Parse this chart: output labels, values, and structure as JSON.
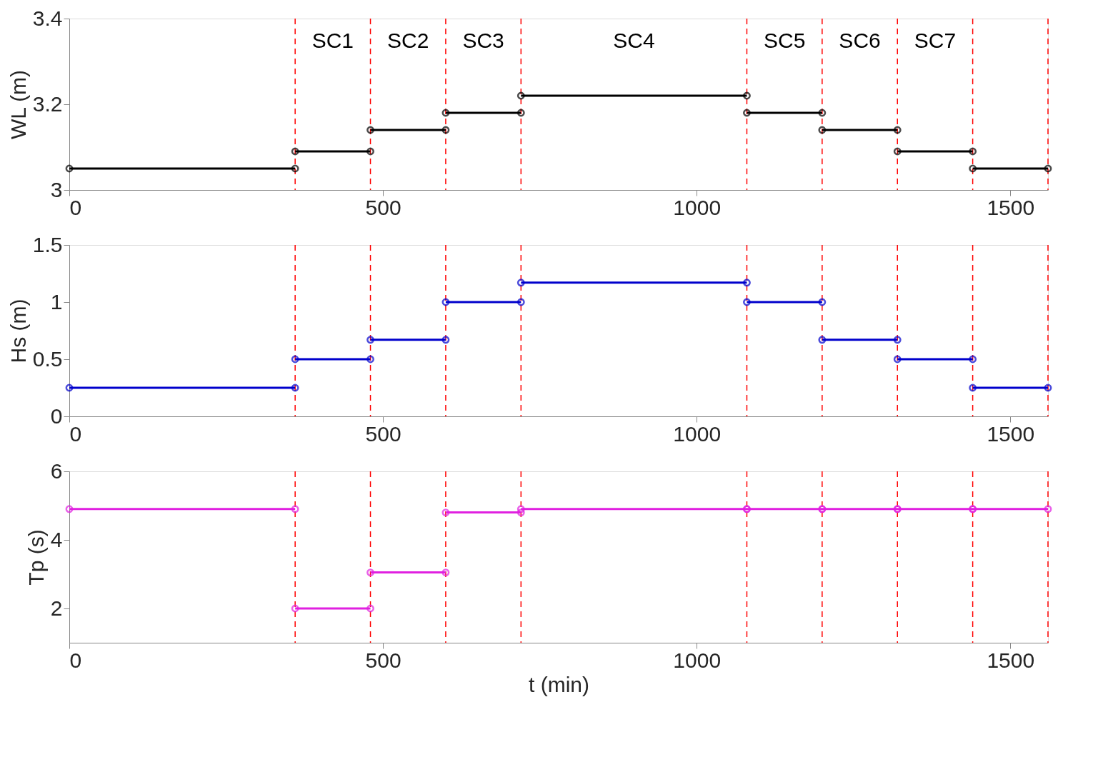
{
  "chart_data": [
    {
      "type": "line",
      "ylabel": "WL (m)",
      "xlim": [
        0,
        1560
      ],
      "xticks": [
        0,
        500,
        1000,
        1500
      ],
      "ylim": [
        3,
        3.4
      ],
      "yticks": [
        3,
        3.2,
        3.4
      ],
      "grid": false,
      "marker": "circle",
      "line_style": "solid",
      "x": [
        0,
        360,
        null,
        360,
        480,
        null,
        480,
        600,
        null,
        600,
        720,
        null,
        720,
        1080,
        null,
        1080,
        1200,
        null,
        1200,
        1320,
        null,
        1320,
        1440,
        null,
        1440,
        1560
      ],
      "series": [
        {
          "color": "#000000",
          "values": [
            3.05,
            3.05,
            null,
            3.09,
            3.09,
            null,
            3.14,
            3.14,
            null,
            3.18,
            3.18,
            null,
            3.22,
            3.22,
            null,
            3.18,
            3.18,
            null,
            3.14,
            3.14,
            null,
            3.09,
            3.09,
            null,
            3.05,
            3.05
          ]
        }
      ],
      "ref_lines": [
        {
          "axis": "x",
          "value": 360,
          "color": "#ff0000",
          "line_style": "dashed"
        },
        {
          "axis": "x",
          "value": 480,
          "color": "#ff0000",
          "line_style": "dashed"
        },
        {
          "axis": "x",
          "value": 600,
          "color": "#ff0000",
          "line_style": "dashed"
        },
        {
          "axis": "x",
          "value": 720,
          "color": "#ff0000",
          "line_style": "dashed"
        },
        {
          "axis": "x",
          "value": 1080,
          "color": "#ff0000",
          "line_style": "dashed"
        },
        {
          "axis": "x",
          "value": 1200,
          "color": "#ff0000",
          "line_style": "dashed"
        },
        {
          "axis": "x",
          "value": 1320,
          "color": "#ff0000",
          "line_style": "dashed"
        },
        {
          "axis": "x",
          "value": 1440,
          "color": "#ff0000",
          "line_style": "dashed"
        },
        {
          "axis": "x",
          "value": 1560,
          "color": "#ff0000",
          "line_style": "dashed"
        }
      ],
      "annotations": [
        "SC1",
        "SC2",
        "SC3",
        "SC4",
        "SC5",
        "SC6",
        "SC7"
      ]
    },
    {
      "type": "line",
      "ylabel": "Hs (m)",
      "xlim": [
        0,
        1560
      ],
      "xticks": [
        0,
        500,
        1000,
        1500
      ],
      "ylim": [
        0,
        1.5
      ],
      "yticks": [
        0,
        0.5,
        1,
        1.5
      ],
      "grid": false,
      "marker": "circle",
      "line_style": "solid",
      "x": [
        0,
        360,
        null,
        360,
        480,
        null,
        480,
        600,
        null,
        600,
        720,
        null,
        720,
        1080,
        null,
        1080,
        1200,
        null,
        1200,
        1320,
        null,
        1320,
        1440,
        null,
        1440,
        1560
      ],
      "series": [
        {
          "color": "#0000cc",
          "values": [
            0.25,
            0.25,
            null,
            0.5,
            0.5,
            null,
            0.67,
            0.67,
            null,
            1,
            1,
            null,
            1.17,
            1.17,
            null,
            1,
            1,
            null,
            0.67,
            0.67,
            null,
            0.5,
            0.5,
            null,
            0.25,
            0.25
          ]
        }
      ],
      "ref_lines": [
        {
          "axis": "x",
          "value": 360,
          "color": "#ff0000",
          "line_style": "dashed"
        },
        {
          "axis": "x",
          "value": 480,
          "color": "#ff0000",
          "line_style": "dashed"
        },
        {
          "axis": "x",
          "value": 600,
          "color": "#ff0000",
          "line_style": "dashed"
        },
        {
          "axis": "x",
          "value": 720,
          "color": "#ff0000",
          "line_style": "dashed"
        },
        {
          "axis": "x",
          "value": 1080,
          "color": "#ff0000",
          "line_style": "dashed"
        },
        {
          "axis": "x",
          "value": 1200,
          "color": "#ff0000",
          "line_style": "dashed"
        },
        {
          "axis": "x",
          "value": 1320,
          "color": "#ff0000",
          "line_style": "dashed"
        },
        {
          "axis": "x",
          "value": 1440,
          "color": "#ff0000",
          "line_style": "dashed"
        },
        {
          "axis": "x",
          "value": 1560,
          "color": "#ff0000",
          "line_style": "dashed"
        }
      ]
    },
    {
      "type": "line",
      "ylabel": "Tp (s)",
      "xlabel": "t (min)",
      "xlim": [
        0,
        1560
      ],
      "xticks": [
        0,
        500,
        1000,
        1500
      ],
      "ylim": [
        1,
        6
      ],
      "yticks": [
        2,
        4,
        6
      ],
      "grid": false,
      "marker": "circle",
      "line_style": "solid",
      "x": [
        0,
        360,
        null,
        360,
        480,
        null,
        480,
        600,
        null,
        600,
        720,
        null,
        720,
        1080,
        null,
        1080,
        1200,
        null,
        1200,
        1320,
        null,
        1320,
        1440,
        null,
        1440,
        1560
      ],
      "series": [
        {
          "color": "#e020e0",
          "values": [
            4.9,
            4.9,
            null,
            2.0,
            2.0,
            null,
            3.05,
            3.05,
            null,
            4.8,
            4.8,
            null,
            4.9,
            4.9,
            null,
            4.9,
            4.9,
            null,
            4.9,
            4.9,
            null,
            4.9,
            4.9,
            null,
            4.9,
            4.9
          ]
        }
      ],
      "ref_lines": [
        {
          "axis": "x",
          "value": 360,
          "color": "#ff0000",
          "line_style": "dashed"
        },
        {
          "axis": "x",
          "value": 480,
          "color": "#ff0000",
          "line_style": "dashed"
        },
        {
          "axis": "x",
          "value": 600,
          "color": "#ff0000",
          "line_style": "dashed"
        },
        {
          "axis": "x",
          "value": 720,
          "color": "#ff0000",
          "line_style": "dashed"
        },
        {
          "axis": "x",
          "value": 1080,
          "color": "#ff0000",
          "line_style": "dashed"
        },
        {
          "axis": "x",
          "value": 1200,
          "color": "#ff0000",
          "line_style": "dashed"
        },
        {
          "axis": "x",
          "value": 1320,
          "color": "#ff0000",
          "line_style": "dashed"
        },
        {
          "axis": "x",
          "value": 1440,
          "color": "#ff0000",
          "line_style": "dashed"
        },
        {
          "axis": "x",
          "value": 1560,
          "color": "#ff0000",
          "line_style": "dashed"
        }
      ]
    }
  ]
}
